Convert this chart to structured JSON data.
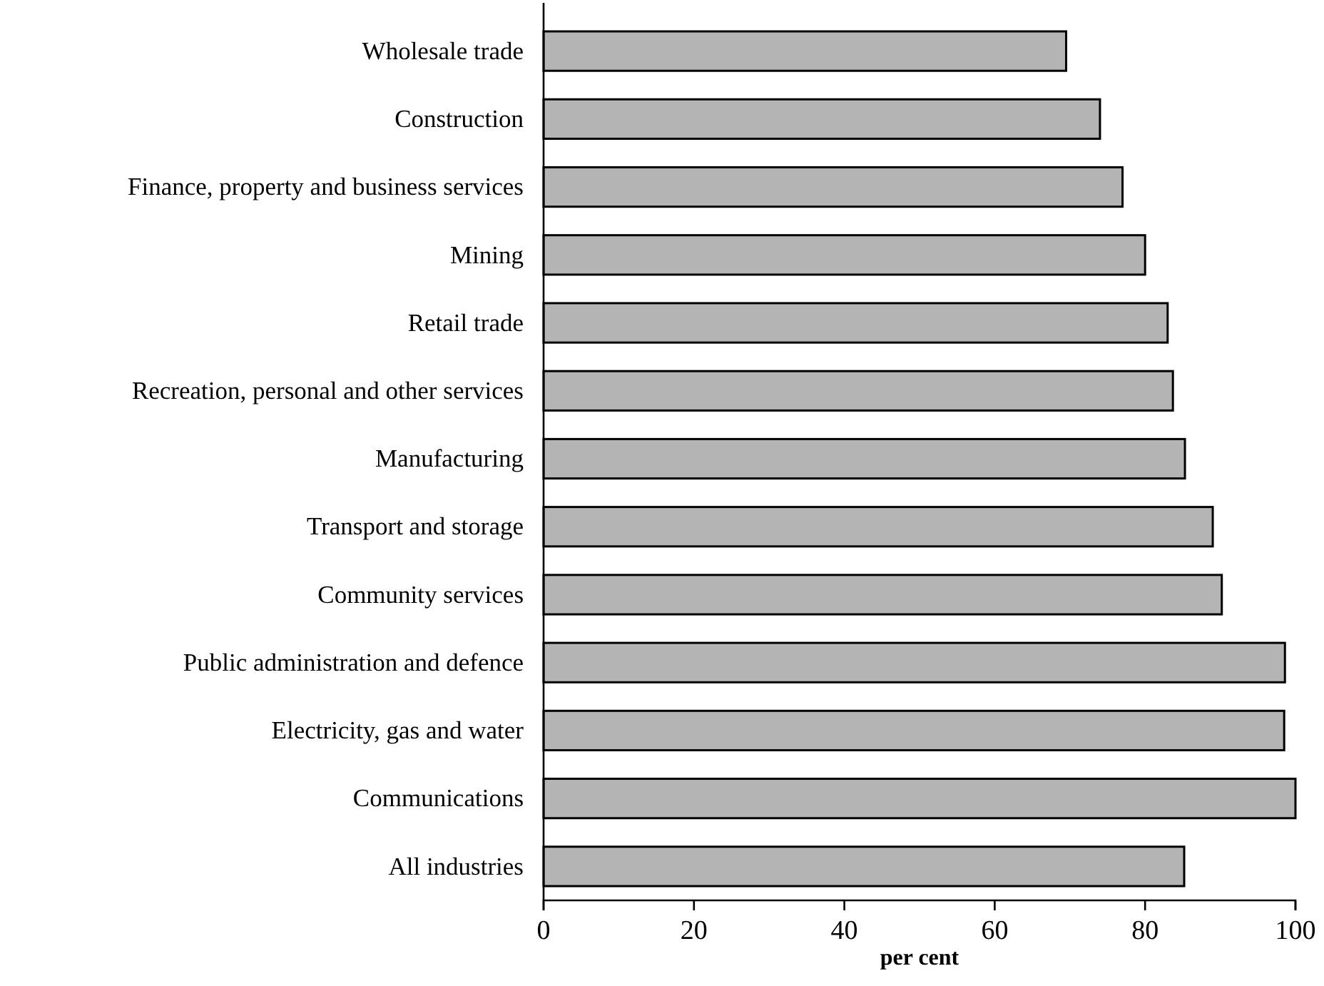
{
  "chart_data": {
    "type": "bar",
    "orientation": "horizontal",
    "xlabel": "per cent",
    "categories": [
      "Wholesale trade",
      "Construction",
      "Finance, property and business services",
      "Mining",
      "Retail trade",
      "Recreation, personal and other services",
      "Manufacturing",
      "Transport and storage",
      "Community services",
      "Public administration and defence",
      "Electricity, gas and water",
      "Communications",
      "All industries"
    ],
    "values": [
      69.5,
      74,
      77,
      80,
      83,
      83.7,
      85.3,
      89,
      90.2,
      98.6,
      98.5,
      100,
      85.2
    ],
    "color": "#b4b4b4",
    "xlim": [
      0,
      100
    ],
    "xticks": [
      0,
      20,
      40,
      60,
      80,
      100
    ],
    "grid": false
  }
}
